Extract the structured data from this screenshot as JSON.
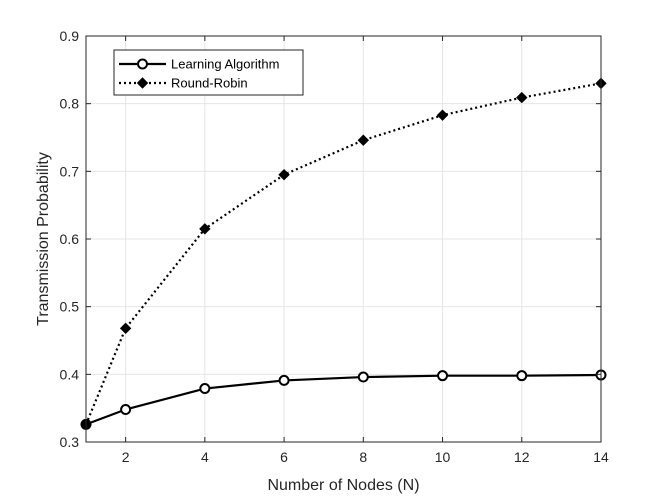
{
  "chart_data": {
    "type": "line",
    "title": "",
    "xlabel": "Number of Nodes (N)",
    "ylabel": "Transmission Probability",
    "xlim": [
      1,
      14
    ],
    "ylim": [
      0.3,
      0.9
    ],
    "x_ticks": [
      2,
      4,
      6,
      8,
      10,
      12,
      14
    ],
    "y_ticks": [
      0.3,
      0.4,
      0.5,
      0.6,
      0.7,
      0.8,
      0.9
    ],
    "x_tick_labels": [
      "2",
      "4",
      "6",
      "8",
      "10",
      "12",
      "14"
    ],
    "y_tick_labels": [
      "0.3",
      "0.4",
      "0.5",
      "0.6",
      "0.7",
      "0.8",
      "0.9"
    ],
    "grid": true,
    "legend_position": "top-left",
    "x": [
      1,
      2,
      4,
      6,
      8,
      10,
      12,
      14
    ],
    "series": [
      {
        "name": "Learning Algorithm",
        "line_style": "solid",
        "marker": "circle",
        "color": "#000000",
        "values": [
          0.326,
          0.348,
          0.379,
          0.391,
          0.396,
          0.398,
          0.398,
          0.399
        ]
      },
      {
        "name": "Round-Robin",
        "line_style": "dotted",
        "marker": "diamond",
        "color": "#000000",
        "values": [
          0.326,
          0.468,
          0.615,
          0.695,
          0.746,
          0.783,
          0.809,
          0.83
        ]
      }
    ]
  }
}
